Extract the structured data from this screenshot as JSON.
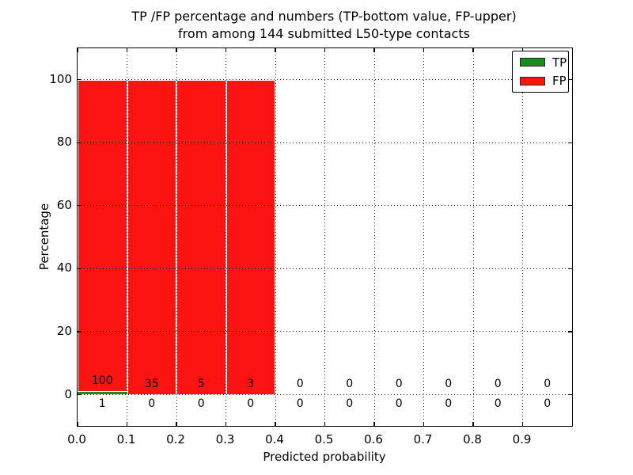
{
  "title": {
    "line1": "TP /FP percentage and numbers (TP-bottom value, FP-upper)",
    "line2": "from among 144 submitted L50-type contacts"
  },
  "axes": {
    "xlabel": "Predicted probability",
    "ylabel": "Percentage",
    "x_tick_labels": [
      "0.0",
      "0.1",
      "0.2",
      "0.3",
      "0.4",
      "0.5",
      "0.6",
      "0.7",
      "0.8",
      "0.9"
    ],
    "x_tick_values": [
      0.0,
      0.1,
      0.2,
      0.3,
      0.4,
      0.5,
      0.6,
      0.7,
      0.8,
      0.9
    ],
    "y_tick_labels": [
      "0",
      "20",
      "40",
      "60",
      "80",
      "100"
    ],
    "y_tick_values": [
      0,
      20,
      40,
      60,
      80,
      100
    ],
    "xlim": [
      0.0,
      1.0
    ],
    "ylim": [
      -10,
      110
    ],
    "grid": "dotted"
  },
  "legend": {
    "position": "upper-right",
    "items": [
      {
        "label": "TP",
        "color": "#1a8c1a"
      },
      {
        "label": "FP",
        "color": "#fb1412"
      }
    ]
  },
  "chart_data": {
    "type": "bar",
    "stacked": true,
    "title": "TP /FP percentage and numbers (TP-bottom value, FP-upper) from among 144 submitted L50-type contacts",
    "xlabel": "Predicted probability",
    "ylabel": "Percentage",
    "total_contacts": 144,
    "bin_width": 0.1,
    "bin_starts": [
      0.0,
      0.1,
      0.2,
      0.3,
      0.4,
      0.5,
      0.6,
      0.7,
      0.8,
      0.9
    ],
    "series": [
      {
        "name": "TP",
        "color": "#1a8c1a",
        "percent": [
          1,
          0,
          0,
          0,
          0,
          0,
          0,
          0,
          0,
          0
        ],
        "counts": [
          1,
          0,
          0,
          0,
          0,
          0,
          0,
          0,
          0,
          0
        ]
      },
      {
        "name": "FP",
        "color": "#fb1412",
        "percent": [
          99,
          100,
          100,
          100,
          0,
          0,
          0,
          0,
          0,
          0
        ],
        "counts": [
          100,
          35,
          5,
          3,
          0,
          0,
          0,
          0,
          0,
          0
        ]
      }
    ],
    "count_label_rows": {
      "upper_is": "FP counts (shown just above baseline / above TP segment)",
      "lower_is": "TP counts (shown just below baseline)"
    }
  }
}
